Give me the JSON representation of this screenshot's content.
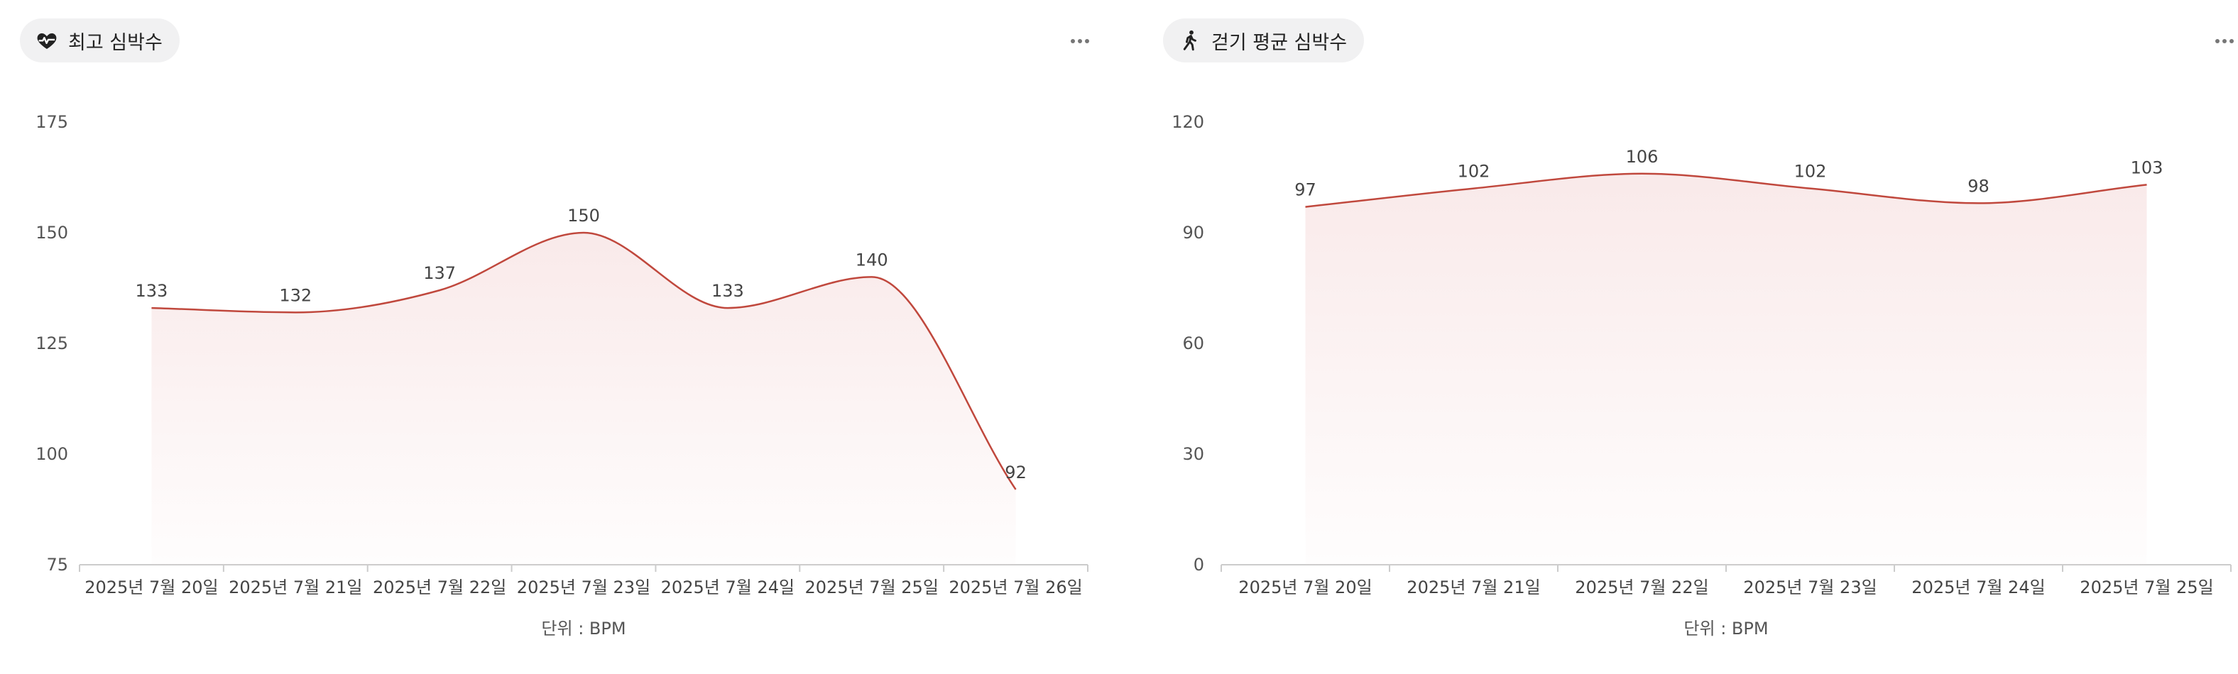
{
  "colors": {
    "line": "#c0483d",
    "fill": "#f4d8d8",
    "axis": "#cccccc",
    "pill_bg": "#f1f1f2"
  },
  "panels": [
    {
      "title": "최고 심박수",
      "icon": "heart-pulse-icon",
      "more_icon": "more-horizontal-icon"
    },
    {
      "title": "걷기 평균 심박수",
      "icon": "walking-person-icon",
      "more_icon": "more-horizontal-icon"
    }
  ],
  "chart_data": [
    {
      "type": "area",
      "title": "최고 심박수",
      "categories": [
        "2025년 7월 20일",
        "2025년 7월 21일",
        "2025년 7월 22일",
        "2025년 7월 23일",
        "2025년 7월 24일",
        "2025년 7월 25일",
        "2025년 7월 26일"
      ],
      "values": [
        133,
        132,
        137,
        150,
        133,
        140,
        92
      ],
      "yticks": [
        75,
        100,
        125,
        150,
        175
      ],
      "ylim": [
        75,
        175
      ],
      "unit_label": "단위 : BPM",
      "grid": false,
      "data_labels": true
    },
    {
      "type": "area",
      "title": "걷기 평균 심박수",
      "categories": [
        "2025년 7월 20일",
        "2025년 7월 21일",
        "2025년 7월 22일",
        "2025년 7월 23일",
        "2025년 7월 24일",
        "2025년 7월 25일"
      ],
      "values": [
        97,
        102,
        106,
        102,
        98,
        103
      ],
      "yticks": [
        0,
        30,
        60,
        90,
        120
      ],
      "ylim": [
        0,
        120
      ],
      "unit_label": "단위 : BPM",
      "grid": false,
      "data_labels": true
    }
  ]
}
